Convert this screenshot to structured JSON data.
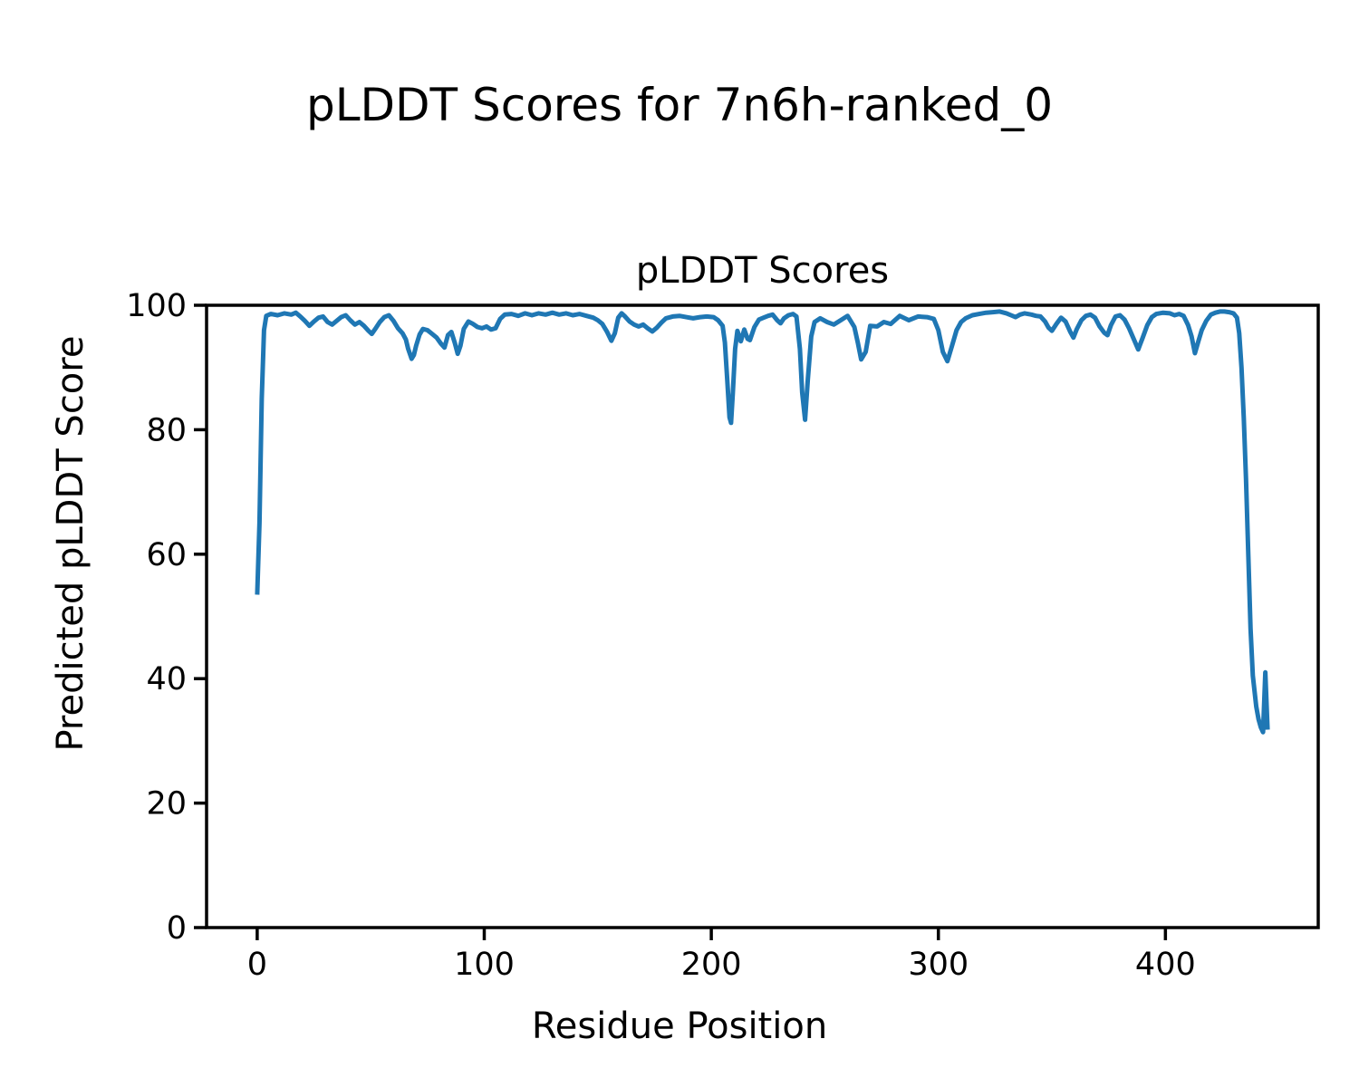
{
  "figure": {
    "suptitle": "pLDDT Scores for 7n6h-ranked_0",
    "background": "#ffffff"
  },
  "chart_data": {
    "type": "line",
    "title": "pLDDT Scores",
    "xlabel": "Residue Position",
    "ylabel": "Predicted pLDDT Score",
    "xlim": [
      -22.3,
      467.3
    ],
    "ylim": [
      0,
      100
    ],
    "xticks": [
      0,
      100,
      200,
      300,
      400
    ],
    "yticks": [
      0,
      20,
      40,
      60,
      80,
      100
    ],
    "grid": false,
    "legend": null,
    "line_color": "#1f77b4",
    "line_width": 5,
    "series": [
      {
        "name": "pLDDT",
        "x": [
          0,
          1,
          2,
          3,
          4,
          6,
          9,
          12,
          15,
          17,
          19,
          21,
          23,
          25,
          27,
          29,
          31,
          33,
          35,
          37,
          39,
          41,
          43,
          45,
          47,
          49,
          50.5,
          52,
          54,
          56,
          58,
          60,
          62,
          64,
          65.5,
          66.5,
          68,
          69,
          70,
          71.5,
          73,
          75,
          77,
          79,
          81,
          82.5,
          84,
          85.5,
          87,
          88.3,
          89.5,
          91,
          93,
          95,
          97,
          99,
          101,
          103,
          105,
          107,
          109,
          112,
          115,
          118,
          121,
          124,
          127,
          130,
          133,
          136,
          139,
          142,
          145,
          148,
          150,
          152,
          154,
          156,
          157.5,
          159,
          160.5,
          162,
          164,
          166,
          168,
          170,
          172,
          174,
          176,
          178,
          180,
          183,
          186,
          189,
          192,
          195,
          198,
          201,
          203,
          205,
          206,
          207,
          208,
          208.7,
          209.5,
          210.5,
          211.5,
          213,
          214.5,
          216,
          217,
          219,
          221,
          223,
          225,
          227,
          229,
          230.5,
          232,
          234,
          236,
          237.5,
          239,
          240,
          241.3,
          242.5,
          244,
          245.5,
          248,
          251,
          254,
          257,
          260,
          263,
          264.5,
          266,
          268,
          270,
          273,
          276,
          279,
          283,
          287,
          291,
          295,
          298,
          300,
          302,
          304,
          306,
          308,
          310,
          312,
          315,
          318,
          321,
          324,
          327,
          330,
          332,
          334,
          336,
          338,
          341,
          343,
          345,
          347,
          348.5,
          350,
          352,
          354,
          356,
          358,
          359.5,
          361,
          363,
          365,
          367,
          369,
          371,
          373,
          374.5,
          376,
          378,
          380,
          382,
          384,
          386,
          388,
          390,
          392,
          394,
          396,
          399,
          402,
          404,
          406,
          408,
          410,
          411.5,
          413,
          414.5,
          416,
          418,
          420,
          422,
          424,
          426,
          428,
          430,
          431.5,
          432.5,
          433.5,
          434.5,
          435.5,
          436.5,
          437.5,
          438.5,
          440,
          441,
          442,
          443,
          444,
          445
        ],
        "y": [
          53.5,
          65,
          85,
          96,
          98.3,
          98.6,
          98.4,
          98.7,
          98.5,
          98.8,
          98.2,
          97.5,
          96.7,
          97.4,
          98.0,
          98.2,
          97.3,
          96.9,
          97.5,
          98.1,
          98.4,
          97.6,
          96.9,
          97.3,
          96.7,
          95.9,
          95.4,
          96.2,
          97.3,
          98.1,
          98.4,
          97.5,
          96.3,
          95.5,
          94.5,
          93.0,
          91.4,
          92.0,
          93.5,
          95.3,
          96.2,
          96.0,
          95.4,
          94.8,
          93.8,
          93.2,
          95.2,
          95.7,
          94.0,
          92.2,
          93.5,
          96.2,
          97.4,
          97.0,
          96.5,
          96.3,
          96.6,
          96.1,
          96.3,
          97.8,
          98.5,
          98.6,
          98.3,
          98.7,
          98.4,
          98.7,
          98.5,
          98.8,
          98.5,
          98.7,
          98.4,
          98.6,
          98.3,
          98.0,
          97.6,
          97.0,
          95.8,
          94.3,
          95.5,
          98.0,
          98.7,
          98.2,
          97.4,
          96.9,
          96.6,
          96.9,
          96.3,
          95.8,
          96.4,
          97.2,
          97.9,
          98.2,
          98.3,
          98.1,
          97.9,
          98.1,
          98.2,
          98.1,
          97.6,
          96.7,
          94.0,
          88.0,
          82.0,
          81.1,
          86.0,
          93.0,
          95.9,
          94.2,
          96.1,
          94.6,
          94.4,
          96.5,
          97.7,
          98.0,
          98.3,
          98.5,
          97.6,
          97.1,
          97.9,
          98.4,
          98.6,
          98.2,
          93.0,
          86.0,
          81.6,
          88.0,
          95.0,
          97.3,
          97.9,
          97.3,
          96.9,
          97.6,
          98.3,
          96.5,
          94.0,
          91.3,
          92.5,
          96.7,
          96.6,
          97.3,
          97.0,
          98.3,
          97.6,
          98.2,
          98.1,
          97.8,
          96.0,
          92.5,
          91.0,
          93.5,
          96.0,
          97.3,
          97.9,
          98.4,
          98.6,
          98.8,
          98.9,
          99.0,
          98.7,
          98.4,
          98.1,
          98.5,
          98.7,
          98.5,
          98.3,
          98.2,
          97.4,
          96.4,
          95.9,
          97.0,
          98.0,
          97.4,
          95.8,
          94.8,
          96.2,
          97.6,
          98.3,
          98.5,
          98.0,
          96.6,
          95.6,
          95.2,
          96.8,
          98.2,
          98.4,
          97.7,
          96.3,
          94.6,
          92.9,
          94.8,
          96.8,
          98.1,
          98.6,
          98.8,
          98.7,
          98.4,
          98.6,
          98.3,
          96.8,
          95.0,
          92.3,
          94.2,
          96.0,
          97.5,
          98.5,
          98.8,
          99.0,
          99.0,
          98.9,
          98.7,
          98.0,
          95.5,
          90.0,
          82.0,
          72.0,
          60.0,
          48.0,
          40.5,
          35.5,
          33.5,
          32.2,
          31.4,
          41.0,
          31.8
        ]
      }
    ]
  }
}
